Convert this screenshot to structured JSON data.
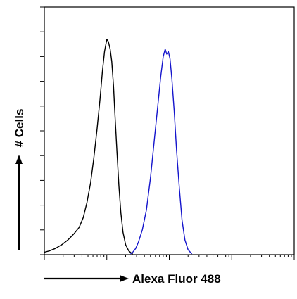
{
  "chart_data": {
    "type": "line",
    "title": "",
    "xlabel": "Alexa Fluor 488",
    "ylabel": "# Cells",
    "x_scale": "log",
    "xlim": [
      1,
      10000
    ],
    "ylim": [
      0,
      100
    ],
    "grid": false,
    "legend": "none",
    "series": [
      {
        "color": "#000000",
        "x": [
          1.0,
          1.2,
          1.5,
          1.9,
          2.4,
          3.0,
          3.6,
          4.2,
          4.8,
          5.5,
          6.2,
          7.0,
          7.8,
          8.5,
          9.2,
          10.0,
          10.6,
          11.3,
          12.0,
          12.8,
          13.6,
          14.6,
          15.6,
          16.8,
          18.2,
          20.0,
          22.5,
          26.0
        ],
        "y": [
          1.0,
          1.5,
          2.5,
          4.0,
          6.0,
          8.5,
          11.0,
          15.0,
          21.0,
          29.0,
          39.0,
          51.0,
          63.0,
          74.0,
          82.0,
          87.0,
          86.0,
          83.0,
          78.0,
          68.0,
          55.0,
          41.0,
          28.0,
          17.0,
          9.0,
          4.0,
          1.5,
          0.2
        ]
      },
      {
        "color": "#1414cc",
        "x": [
          24,
          26,
          29,
          32,
          37,
          43,
          50,
          58,
          66,
          73,
          80,
          86,
          91,
          97,
          103,
          110,
          120,
          131,
          145,
          160,
          178,
          200,
          230
        ],
        "y": [
          0.3,
          1.0,
          2.5,
          5.0,
          10.0,
          18.0,
          31.0,
          47.0,
          61.0,
          72.0,
          80.0,
          83.0,
          81.0,
          82.0,
          79.0,
          71.0,
          58.0,
          42.0,
          27.0,
          14.0,
          6.0,
          2.0,
          0.3
        ]
      }
    ]
  }
}
